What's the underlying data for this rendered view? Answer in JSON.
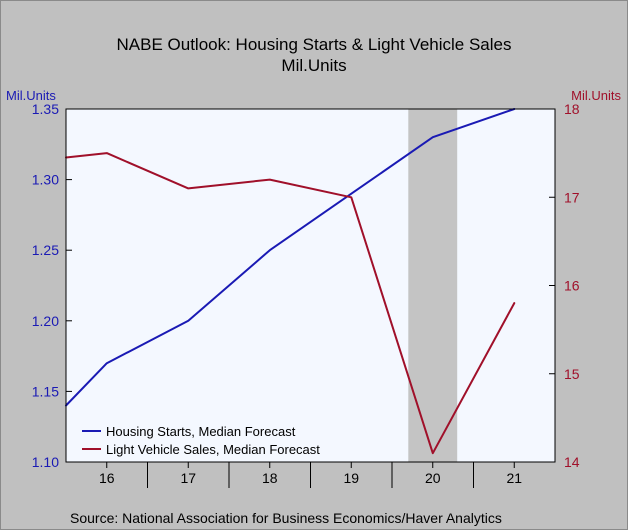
{
  "chart_data": {
    "type": "line",
    "title": "NABE Outlook: Housing Starts & Light Vehicle Sales",
    "subtitle": "Mil.Units",
    "left_axis": {
      "label": "Mil.Units",
      "range": [
        1.1,
        1.35
      ],
      "ticks": [
        "1.35",
        "1.30",
        "1.25",
        "1.20",
        "1.15",
        "1.10"
      ],
      "color": "#1a1ab4"
    },
    "right_axis": {
      "label": "Mil.Units",
      "range": [
        14,
        18
      ],
      "ticks": [
        "18",
        "17",
        "16",
        "15",
        "14"
      ],
      "color": "#a0102a"
    },
    "x_tick_labels": [
      "16",
      "17",
      "18",
      "19",
      "20",
      "21"
    ],
    "x_domain": [
      15.5,
      21.5
    ],
    "recession_band": {
      "from": 19.7,
      "to": 20.3
    },
    "series": [
      {
        "name": "Housing Starts, Median Forecast",
        "axis": "left",
        "color": "#1a1ab4",
        "x": [
          15.5,
          16,
          17,
          18,
          19,
          20,
          21
        ],
        "values": [
          1.14,
          1.17,
          1.2,
          1.25,
          1.29,
          1.33,
          1.35
        ]
      },
      {
        "name": "Light Vehicle Sales, Median Forecast",
        "axis": "right",
        "color": "#a0102a",
        "x": [
          15.5,
          16,
          17,
          18,
          19,
          20,
          21
        ],
        "values": [
          17.45,
          17.5,
          17.1,
          17.2,
          17.0,
          14.1,
          15.8
        ]
      }
    ],
    "legend_position": "bottom-left",
    "grid": false
  },
  "source": "Source:  National Association for Business Economics/Haver Analytics"
}
